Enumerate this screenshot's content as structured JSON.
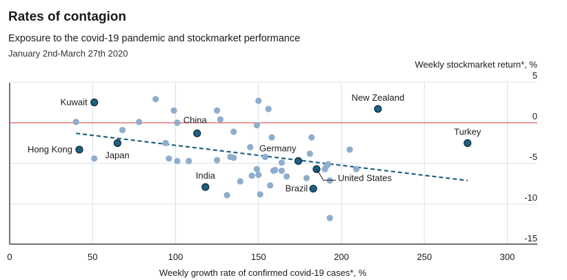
{
  "header": {
    "title": "Rates of contagion",
    "subtitle": "Exposure to the covid-19 pandemic and stockmarket performance",
    "daterange": "January 2nd-March 27th 2020"
  },
  "chart_data": {
    "type": "scatter",
    "xlabel": "Weekly growth rate of confirmed covid-19 cases*, %",
    "ylabel": "Weekly stockmarket return*, %",
    "xlim": [
      0,
      310
    ],
    "ylim": [
      -15,
      5
    ],
    "xticks": [
      0,
      50,
      100,
      150,
      200,
      250,
      300
    ],
    "yticks": [
      5,
      0,
      -5,
      -10,
      -15
    ],
    "grid": true,
    "colors": {
      "points": "#8fadcc",
      "highlight": "#1f5f80",
      "trend": "#1f5f80",
      "zero_line": "#e05a5a",
      "grid": "#d6e0e8"
    },
    "highlighted": [
      {
        "label": "Kuwait",
        "x": 51,
        "y": 2.5
      },
      {
        "label": "Hong Kong",
        "x": 42,
        "y": -3.3
      },
      {
        "label": "Japan",
        "x": 65,
        "y": -2.5
      },
      {
        "label": "China",
        "x": 113,
        "y": -1.3
      },
      {
        "label": "India",
        "x": 118,
        "y": -7.9
      },
      {
        "label": "Germany",
        "x": 174,
        "y": -4.7
      },
      {
        "label": "Brazil",
        "x": 183,
        "y": -8.1
      },
      {
        "label": "United States",
        "x": 185,
        "y": -5.7
      },
      {
        "label": "New Zealand",
        "x": 222,
        "y": 1.7
      },
      {
        "label": "Turkey",
        "x": 276,
        "y": -2.5
      }
    ],
    "points": [
      {
        "x": 40,
        "y": 0.1
      },
      {
        "x": 51,
        "y": -4.4
      },
      {
        "x": 68,
        "y": -0.9
      },
      {
        "x": 78,
        "y": 0.1
      },
      {
        "x": 88,
        "y": 2.9
      },
      {
        "x": 94,
        "y": -2.5
      },
      {
        "x": 96,
        "y": -4.4
      },
      {
        "x": 99,
        "y": 1.5
      },
      {
        "x": 101,
        "y": 0.0
      },
      {
        "x": 101,
        "y": -4.7
      },
      {
        "x": 108,
        "y": -4.7
      },
      {
        "x": 125,
        "y": 1.5
      },
      {
        "x": 125,
        "y": -4.6
      },
      {
        "x": 127,
        "y": 0.4
      },
      {
        "x": 131,
        "y": -8.9
      },
      {
        "x": 133,
        "y": -4.2
      },
      {
        "x": 135,
        "y": -4.3
      },
      {
        "x": 135,
        "y": -1.1
      },
      {
        "x": 139,
        "y": -7.2
      },
      {
        "x": 145,
        "y": -3.0
      },
      {
        "x": 146,
        "y": -6.5
      },
      {
        "x": 149,
        "y": -0.3
      },
      {
        "x": 149,
        "y": -5.7
      },
      {
        "x": 150,
        "y": 2.7
      },
      {
        "x": 150,
        "y": -6.4
      },
      {
        "x": 151,
        "y": -8.8
      },
      {
        "x": 154,
        "y": -4.2
      },
      {
        "x": 156,
        "y": 1.7
      },
      {
        "x": 157,
        "y": -7.7
      },
      {
        "x": 158,
        "y": -1.8
      },
      {
        "x": 159,
        "y": -5.9
      },
      {
        "x": 160,
        "y": -5.8
      },
      {
        "x": 164,
        "y": -4.9
      },
      {
        "x": 164,
        "y": -5.9
      },
      {
        "x": 167,
        "y": -6.6
      },
      {
        "x": 179,
        "y": -6.8
      },
      {
        "x": 181,
        "y": -3.8
      },
      {
        "x": 182,
        "y": -1.8
      },
      {
        "x": 190,
        "y": -5.7
      },
      {
        "x": 191,
        "y": -5.3
      },
      {
        "x": 192,
        "y": -5.1
      },
      {
        "x": 193,
        "y": -7.1
      },
      {
        "x": 193,
        "y": -11.7
      },
      {
        "x": 205,
        "y": -3.3
      },
      {
        "x": 209,
        "y": -5.7
      }
    ],
    "trendline": {
      "x": [
        40,
        276
      ],
      "y": [
        -1.3,
        -7.1
      ]
    }
  }
}
